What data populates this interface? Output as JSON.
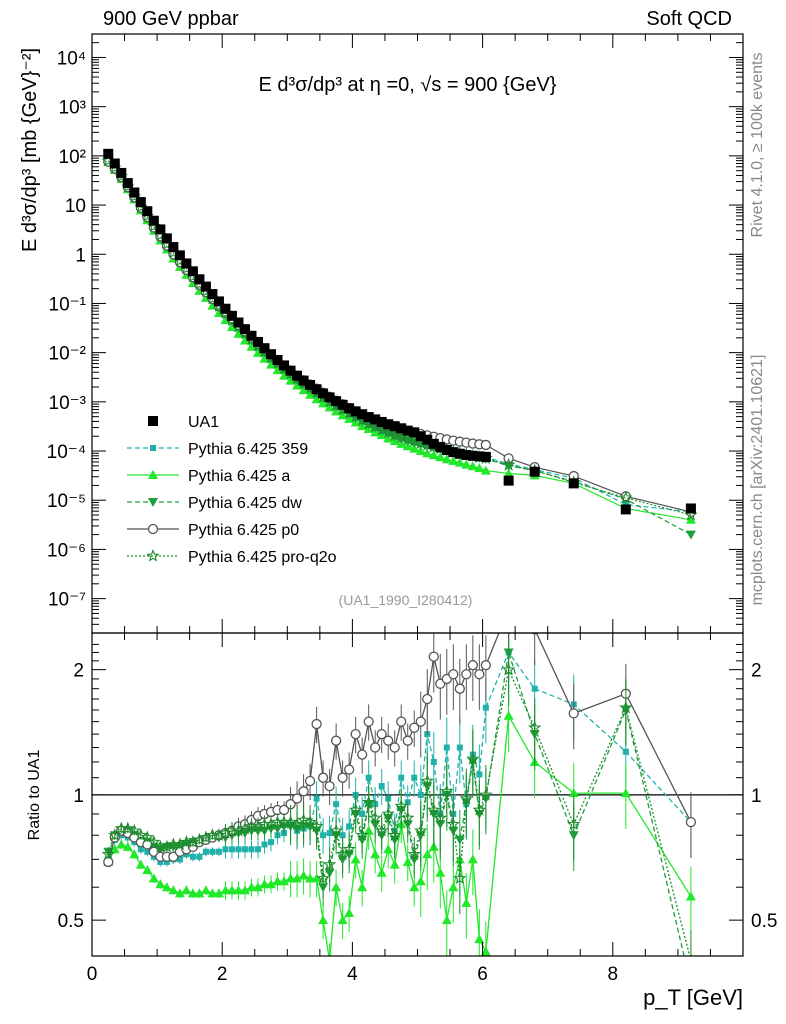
{
  "header": {
    "left": "900 GeV ppbar",
    "right": "Soft QCD"
  },
  "side": {
    "rivet": "Rivet 4.1.0, ≥ 100k events",
    "site": "mcplots.cern.ch [arXiv:2401.10621]"
  },
  "chart_data": [
    {
      "type": "scatter",
      "title": "E  d³σ/dp³ at η =0, √s = 900 {GeV}",
      "ylabel": "E d³σ/dp³ [mb {GeV}⁻²]",
      "xlabel": "p_T [GeV]",
      "yscale": "log",
      "xlim": [
        0,
        10
      ],
      "ylim": [
        2e-08,
        30000
      ],
      "y_ticks": [
        "10⁻⁷",
        "10⁻⁶",
        "10⁻⁵",
        "10⁻⁴",
        "10⁻³",
        "10⁻²",
        "10⁻¹",
        "1",
        "10",
        "10²",
        "10³",
        "10⁴"
      ],
      "watermark": "(UA1_1990_I280412)",
      "x": [
        0.25,
        0.35,
        0.45,
        0.55,
        0.65,
        0.75,
        0.85,
        0.95,
        1.05,
        1.15,
        1.25,
        1.35,
        1.45,
        1.55,
        1.65,
        1.75,
        1.85,
        1.95,
        2.05,
        2.15,
        2.25,
        2.35,
        2.45,
        2.55,
        2.65,
        2.75,
        2.85,
        2.95,
        3.05,
        3.15,
        3.25,
        3.35,
        3.45,
        3.55,
        3.65,
        3.75,
        3.85,
        3.95,
        4.05,
        4.15,
        4.25,
        4.35,
        4.45,
        4.55,
        4.65,
        4.75,
        4.85,
        4.95,
        5.05,
        5.15,
        5.25,
        5.35,
        5.45,
        5.55,
        5.65,
        5.75,
        5.85,
        5.95,
        6.05,
        6.4,
        6.8,
        7.4,
        8.2,
        9.2
      ],
      "series": [
        {
          "name": "UA1",
          "values": [
            110,
            70,
            45,
            28,
            18,
            11.5,
            7.5,
            4.8,
            3.2,
            2.1,
            1.4,
            0.95,
            0.65,
            0.45,
            0.31,
            0.22,
            0.155,
            0.11,
            0.078,
            0.056,
            0.041,
            0.03,
            0.022,
            0.0165,
            0.0123,
            0.0093,
            0.0071,
            0.0055,
            0.0043,
            0.0034,
            0.0027,
            0.0022,
            0.0018,
            0.00148,
            0.00123,
            0.00103,
            0.00087,
            0.00074,
            0.00064,
            0.00056,
            0.00049,
            0.00044,
            0.00039,
            0.00035,
            0.00032,
            0.00029,
            0.00026,
            0.00024,
            0.0002,
            0.00017,
            0.00014,
            0.00012,
            0.000105,
            9.5e-05,
            8.8e-05,
            8.3e-05,
            8e-05,
            7.8e-05,
            7.6e-05,
            2.5e-05,
            3.8e-05,
            2.2e-05,
            6.5e-06,
            6.8e-06
          ]
        },
        {
          "name": "Pythia 6.425 359",
          "values": [
            78,
            54,
            36,
            22,
            14,
            8.5,
            5.5,
            3.4,
            2.2,
            1.45,
            0.98,
            0.66,
            0.47,
            0.32,
            0.22,
            0.16,
            0.113,
            0.08,
            0.057,
            0.041,
            0.03,
            0.022,
            0.0163,
            0.0122,
            0.0092,
            0.0071,
            0.0055,
            0.0043,
            0.0034,
            0.0027,
            0.00216,
            0.00175,
            0.00143,
            0.00118,
            0.00097,
            0.00081,
            0.00068,
            0.00057,
            0.00048,
            0.00041,
            0.00035,
            0.0003,
            0.00026,
            0.00023,
            0.0002,
            0.00018,
            0.000165,
            0.00015,
            0.00014,
            0.00013,
            0.00012,
            0.000112,
            0.000105,
            9.8e-05,
            9.2e-05,
            8.7e-05,
            8.2e-05,
            7.8e-05,
            7.5e-05,
            5.5e-05,
            4.2e-05,
            2.8e-05,
            8.2e-06,
            5.8e-06
          ]
        },
        {
          "name": "Pythia 6.425 a",
          "values": [
            76,
            52,
            34,
            21,
            13,
            7.8,
            4.9,
            3.0,
            1.9,
            1.25,
            0.82,
            0.55,
            0.38,
            0.26,
            0.18,
            0.13,
            0.09,
            0.064,
            0.046,
            0.033,
            0.024,
            0.0177,
            0.0132,
            0.0099,
            0.0075,
            0.0057,
            0.0044,
            0.0034,
            0.0027,
            0.00215,
            0.00172,
            0.00139,
            0.00113,
            0.00093,
            0.00077,
            0.00064,
            0.00053,
            0.00045,
            0.00038,
            0.00032,
            0.00028,
            0.00024,
            0.00021,
            0.00018,
            0.00016,
            0.00014,
            0.000125,
            0.000112,
            0.0001,
            9e-05,
            8.2e-05,
            7.5e-05,
            6.8e-05,
            6.3e-05,
            5.8e-05,
            5.3e-05,
            4.9e-05,
            4.5e-05,
            4e-05,
            3.5e-05,
            3.2e-05,
            2.2e-05,
            6.8e-06,
            4e-06
          ]
        },
        {
          "name": "Pythia 6.425 dw",
          "values": [
            80,
            56,
            37,
            23,
            14.5,
            8.9,
            5.8,
            3.6,
            2.4,
            1.6,
            1.06,
            0.72,
            0.5,
            0.35,
            0.24,
            0.17,
            0.122,
            0.087,
            0.062,
            0.045,
            0.033,
            0.0243,
            0.018,
            0.0135,
            0.0101,
            0.0077,
            0.0059,
            0.0046,
            0.0036,
            0.0028,
            0.00225,
            0.00182,
            0.00148,
            0.00121,
            0.00099,
            0.00082,
            0.00068,
            0.00057,
            0.00048,
            0.00041,
            0.00035,
            0.0003,
            0.00026,
            0.00023,
            0.0002,
            0.00018,
            0.000162,
            0.000148,
            0.000136,
            0.000126,
            0.000117,
            0.000108,
            0.0001,
            9.3e-05,
            8.7e-05,
            8.2e-05,
            7.7e-05,
            7.3e-05,
            6.9e-05,
            5e-05,
            4e-05,
            2.4e-05,
            1.05e-05,
            2e-06
          ]
        },
        {
          "name": "Pythia 6.425 p0",
          "values": [
            76,
            55,
            37,
            23,
            14.3,
            8.8,
            5.7,
            3.5,
            2.3,
            1.5,
            1.0,
            0.69,
            0.48,
            0.34,
            0.24,
            0.17,
            0.123,
            0.089,
            0.065,
            0.048,
            0.036,
            0.0268,
            0.02,
            0.0152,
            0.0116,
            0.0089,
            0.0069,
            0.0054,
            0.0043,
            0.0034,
            0.00275,
            0.00225,
            0.00185,
            0.00153,
            0.00127,
            0.00106,
            0.00089,
            0.00075,
            0.00064,
            0.00055,
            0.00048,
            0.00042,
            0.00037,
            0.00033,
            0.0003,
            0.000275,
            0.000255,
            0.000238,
            0.000222,
            0.000208,
            0.000195,
            0.000183,
            0.000172,
            0.000163,
            0.000155,
            0.000148,
            0.000142,
            0.000137,
            0.000133,
            7.1e-05,
            4.7e-05,
            3.1e-05,
            1.2e-05,
            5.8e-06
          ]
        },
        {
          "name": "Pythia 6.425 pro-q2o",
          "values": [
            79,
            57,
            38,
            23.5,
            14.8,
            9.1,
            5.9,
            3.7,
            2.4,
            1.6,
            1.07,
            0.73,
            0.51,
            0.35,
            0.245,
            0.175,
            0.125,
            0.089,
            0.064,
            0.046,
            0.034,
            0.025,
            0.0185,
            0.0139,
            0.0104,
            0.0079,
            0.0061,
            0.0047,
            0.0037,
            0.0029,
            0.00232,
            0.00187,
            0.00152,
            0.00124,
            0.00102,
            0.00084,
            0.0007,
            0.00059,
            0.0005,
            0.00042,
            0.00036,
            0.00031,
            0.00027,
            0.00024,
            0.00021,
            0.00019,
            0.000172,
            0.000157,
            0.000144,
            0.000132,
            0.000122,
            0.000112,
            0.000104,
            9.7e-05,
            9e-05,
            8.5e-05,
            8e-05,
            7.5e-05,
            7.1e-05,
            5.2e-05,
            4e-05,
            2.3e-05,
            1.12e-05,
            5e-06
          ]
        }
      ],
      "legend": [
        "UA1",
        "Pythia 6.425 359",
        "Pythia 6.425 a",
        "Pythia 6.425 dw",
        "Pythia 6.425 p0",
        "Pythia 6.425 pro-q2o"
      ],
      "colors": {
        "UA1": "#000000",
        "Pythia 6.425 359": "#20b2aa",
        "Pythia 6.425 a": "#22e82a",
        "Pythia 6.425 dw": "#1ca03a",
        "Pythia 6.425 p0": "#555555",
        "Pythia 6.425 pro-q2o": "#1e8c2e"
      }
    },
    {
      "type": "line",
      "ylabel": "Ratio to UA1",
      "xlabel": "p_T [GeV]",
      "yscale": "log",
      "xlim": [
        0,
        10
      ],
      "ylim": [
        0.41,
        2.45
      ],
      "x_ticks": [
        "0",
        "2",
        "4",
        "6",
        "8"
      ],
      "y_ticks": [
        "0.5",
        "1",
        "2"
      ],
      "x": [
        0.25,
        0.35,
        0.45,
        0.55,
        0.65,
        0.75,
        0.85,
        0.95,
        1.05,
        1.15,
        1.25,
        1.35,
        1.45,
        1.55,
        1.65,
        1.75,
        1.85,
        1.95,
        2.05,
        2.15,
        2.25,
        2.35,
        2.45,
        2.55,
        2.65,
        2.75,
        2.85,
        2.95,
        3.05,
        3.15,
        3.25,
        3.35,
        3.45,
        3.55,
        3.65,
        3.75,
        3.85,
        3.95,
        4.05,
        4.15,
        4.25,
        4.35,
        4.45,
        4.55,
        4.65,
        4.75,
        4.85,
        4.95,
        5.05,
        5.15,
        5.25,
        5.35,
        5.45,
        5.55,
        5.65,
        5.75,
        5.85,
        5.95,
        6.05,
        6.4,
        6.8,
        7.4,
        8.2,
        9.2
      ],
      "series": [
        {
          "name": "Pythia 6.425 359",
          "values": [
            0.7,
            0.78,
            0.8,
            0.79,
            0.77,
            0.74,
            0.73,
            0.71,
            0.69,
            0.69,
            0.7,
            0.7,
            0.72,
            0.71,
            0.71,
            0.73,
            0.73,
            0.73,
            0.74,
            0.74,
            0.74,
            0.74,
            0.74,
            0.74,
            0.76,
            0.77,
            0.8,
            0.81,
            0.85,
            0.82,
            0.83,
            0.84,
            0.98,
            0.8,
            0.81,
            0.95,
            0.8,
            0.84,
            1.0,
            0.9,
            1.1,
            0.95,
            1.05,
            0.98,
            0.82,
            1.1,
            0.96,
            1.1,
            1.0,
            1.4,
            1.2,
            0.9,
            1.3,
            0.9,
            1.3,
            0.95,
            1.25,
            1.12,
            1.62,
            2.2,
            1.8,
            1.65,
            1.27,
            0.86
          ]
        },
        {
          "name": "Pythia 6.425 a",
          "values": [
            0.69,
            0.74,
            0.76,
            0.75,
            0.72,
            0.68,
            0.66,
            0.63,
            0.61,
            0.6,
            0.59,
            0.58,
            0.59,
            0.58,
            0.58,
            0.59,
            0.58,
            0.58,
            0.59,
            0.59,
            0.59,
            0.59,
            0.6,
            0.6,
            0.61,
            0.61,
            0.62,
            0.62,
            0.63,
            0.63,
            0.64,
            0.63,
            0.63,
            0.5,
            0.4,
            0.6,
            0.5,
            0.52,
            0.7,
            0.6,
            0.82,
            0.72,
            0.65,
            0.74,
            0.68,
            0.85,
            0.69,
            0.6,
            0.62,
            0.72,
            0.75,
            0.65,
            0.5,
            0.6,
            0.7,
            0.55,
            0.7,
            0.45,
            0.42,
            1.55,
            1.2,
            1.01,
            1.01,
            0.57
          ]
        },
        {
          "name": "Pythia 6.425 dw",
          "values": [
            0.73,
            0.8,
            0.82,
            0.82,
            0.8,
            0.77,
            0.77,
            0.75,
            0.74,
            0.75,
            0.75,
            0.75,
            0.76,
            0.77,
            0.77,
            0.78,
            0.79,
            0.79,
            0.79,
            0.8,
            0.81,
            0.81,
            0.82,
            0.82,
            0.82,
            0.83,
            0.83,
            0.84,
            0.84,
            0.83,
            0.84,
            0.84,
            0.82,
            0.6,
            0.65,
            0.8,
            0.7,
            0.72,
            0.9,
            0.78,
            0.95,
            0.85,
            0.8,
            0.88,
            0.78,
            0.92,
            0.85,
            0.7,
            0.8,
            1.05,
            0.9,
            0.85,
            1.0,
            0.82,
            0.78,
            0.96,
            1.2,
            0.9,
            0.98,
            2.2,
            1.4,
            0.8,
            1.6,
            0.35
          ]
        },
        {
          "name": "Pythia 6.425 p0",
          "values": [
            0.69,
            0.79,
            0.82,
            0.81,
            0.79,
            0.77,
            0.76,
            0.73,
            0.71,
            0.71,
            0.71,
            0.73,
            0.74,
            0.75,
            0.77,
            0.78,
            0.79,
            0.8,
            0.81,
            0.82,
            0.84,
            0.85,
            0.87,
            0.89,
            0.9,
            0.91,
            0.92,
            0.92,
            0.95,
            0.98,
            1.02,
            1.08,
            1.48,
            1.1,
            1.05,
            1.35,
            1.1,
            1.15,
            1.4,
            1.25,
            1.5,
            1.3,
            1.4,
            1.35,
            1.3,
            1.5,
            1.35,
            1.45,
            1.5,
            1.7,
            2.15,
            1.85,
            1.9,
            1.95,
            1.8,
            1.95,
            2.05,
            1.95,
            2.05,
            2.8,
            2.5,
            1.57,
            1.75,
            0.86
          ]
        },
        {
          "name": "Pythia 6.425 pro-q2o",
          "values": [
            0.72,
            0.8,
            0.83,
            0.83,
            0.82,
            0.8,
            0.79,
            0.77,
            0.75,
            0.75,
            0.76,
            0.76,
            0.77,
            0.77,
            0.78,
            0.79,
            0.8,
            0.8,
            0.81,
            0.82,
            0.82,
            0.83,
            0.84,
            0.84,
            0.85,
            0.85,
            0.86,
            0.86,
            0.86,
            0.85,
            0.87,
            0.86,
            0.84,
            0.63,
            0.68,
            0.82,
            0.72,
            0.74,
            0.92,
            0.8,
            0.96,
            0.88,
            0.82,
            0.9,
            0.8,
            0.94,
            0.88,
            0.72,
            0.82,
            1.08,
            0.92,
            0.88,
            1.02,
            0.85,
            0.63,
            0.98,
            1.22,
            0.92,
            1.0,
            2.0,
            1.45,
            0.85,
            1.62,
            0.4
          ]
        }
      ],
      "reference_line": 1
    }
  ]
}
